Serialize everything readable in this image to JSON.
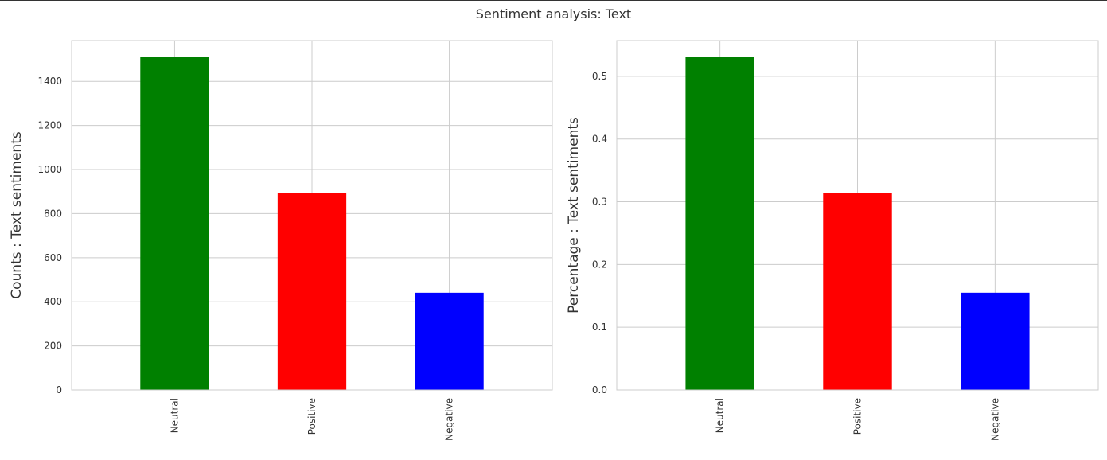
{
  "figure": {
    "title": "Sentiment analysis: Text"
  },
  "chart_data": [
    {
      "type": "bar",
      "categories": [
        "Neutral",
        "Positive",
        "Negative"
      ],
      "values": [
        1512,
        893,
        441
      ],
      "colors": [
        "#008000",
        "#ff0000",
        "#0000ff"
      ],
      "ylabel": "Counts : Text sentiments",
      "ylim": [
        0,
        1585
      ],
      "yticks": [
        0,
        200,
        400,
        600,
        800,
        1000,
        1200,
        1400
      ],
      "ytick_labels": [
        "0",
        "200",
        "400",
        "600",
        "800",
        "1000",
        "1200",
        "1400"
      ],
      "grid": true
    },
    {
      "type": "bar",
      "categories": [
        "Neutral",
        "Positive",
        "Negative"
      ],
      "values": [
        0.531,
        0.314,
        0.155
      ],
      "colors": [
        "#008000",
        "#ff0000",
        "#0000ff"
      ],
      "ylabel": "Percentage : Text sentiments",
      "ylim": [
        0,
        0.557
      ],
      "yticks": [
        0,
        0.1,
        0.2,
        0.3,
        0.4,
        0.5
      ],
      "ytick_labels": [
        "0.0",
        "0.1",
        "0.2",
        "0.3",
        "0.4",
        "0.5"
      ],
      "grid": true
    }
  ]
}
